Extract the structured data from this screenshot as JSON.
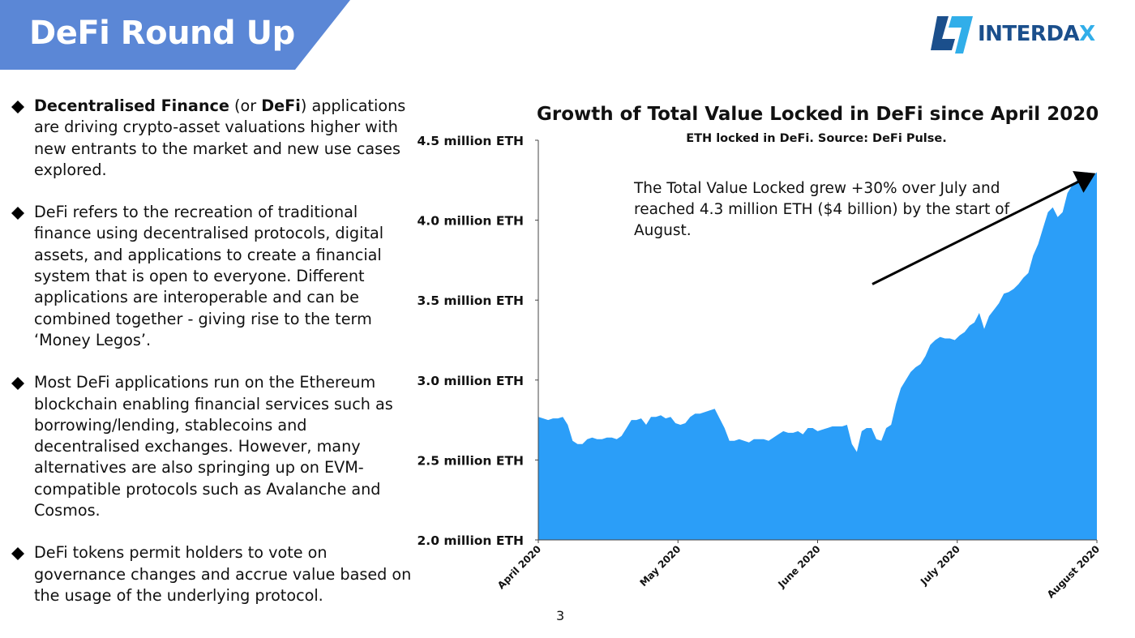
{
  "header": {
    "title": "DeFi Round Up",
    "band_color": "#5b87d6"
  },
  "logo": {
    "text_main": "INTERDA",
    "text_tail": "X",
    "colors": [
      "#1b4f8c",
      "#31aee9"
    ]
  },
  "bullets": [
    {
      "bold1": "Decentralised Finance",
      "mid": " (or ",
      "bold2": "DeFi",
      "rest": ") applications are driving crypto-asset valuations higher with new entrants to the market and new use cases explored."
    },
    {
      "text": "DeFi refers to the recreation of traditional finance using decentralised protocols, digital assets, and applications to create a financial system that is open to everyone. Different applications are interoperable and can be combined together - giving rise to the term ‘Money Legos’."
    },
    {
      "text": "Most DeFi applications run on the Ethereum blockchain enabling financial services such as borrowing/lending, stablecoins and decentralised exchanges. However, many alternatives are also springing up on EVM-compatible protocols such as Avalanche and Cosmos."
    },
    {
      "text": "DeFi tokens permit holders to vote on governance changes and accrue value based on the usage of the underlying protocol."
    }
  ],
  "chart_data": {
    "type": "area",
    "title": "Growth of Total Value Locked in DeFi since April 2020",
    "subtitle": "ETH locked in DeFi. Source: DeFi Pulse.",
    "y_ticks": [
      2.0,
      2.5,
      3.0,
      3.5,
      4.0,
      4.5
    ],
    "y_tick_labels": [
      "2.0 million ETH",
      "2.5 million ETH",
      "3.0 million ETH",
      "3.5 million ETH",
      "4.0 million ETH",
      "4.5 million ETH"
    ],
    "ylim": [
      2.0,
      4.5
    ],
    "x_ticks": [
      "April 2020",
      "May 2020",
      "June 2020",
      "July 2020",
      "August 2020"
    ],
    "fill_color": "#2b9ef8",
    "grid": false,
    "annotation": "The Total Value Locked grew +30% over July and reached 4.3 million ETH ($4 billion) by the start of August.",
    "trend_arrow": {
      "from": [
        2.9,
        3.6
      ],
      "to": [
        4.8,
        4.28
      ]
    },
    "series": [
      {
        "values": [
          2.77,
          2.76,
          2.75,
          2.76,
          2.76,
          2.77,
          2.72,
          2.62,
          2.6,
          2.6,
          2.63,
          2.64,
          2.63,
          2.63,
          2.64,
          2.64,
          2.63,
          2.65,
          2.7,
          2.75,
          2.75,
          2.76,
          2.72,
          2.77,
          2.77,
          2.78,
          2.76,
          2.77,
          2.73,
          2.72,
          2.73,
          2.77,
          2.79,
          2.79,
          2.8,
          2.81,
          2.82,
          2.76,
          2.7,
          2.62,
          2.62,
          2.63,
          2.62,
          2.61,
          2.63,
          2.63,
          2.63,
          2.62,
          2.64,
          2.66,
          2.68,
          2.67,
          2.67,
          2.68,
          2.66,
          2.7,
          2.7,
          2.68,
          2.69,
          2.7,
          2.71,
          2.71,
          2.71,
          2.72,
          2.6,
          2.55,
          2.68,
          2.7,
          2.7,
          2.63,
          2.62,
          2.7,
          2.72,
          2.85,
          2.95,
          3.0,
          3.05,
          3.08,
          3.1,
          3.15,
          3.22,
          3.25,
          3.27,
          3.26,
          3.26,
          3.25,
          3.28,
          3.3,
          3.34,
          3.36,
          3.42,
          3.32,
          3.4,
          3.44,
          3.48,
          3.54,
          3.55,
          3.57,
          3.6,
          3.64,
          3.67,
          3.78,
          3.85,
          3.95,
          4.05,
          4.08,
          4.02,
          4.05,
          4.17,
          4.22,
          4.25,
          4.28,
          4.3,
          4.27,
          4.3
        ]
      }
    ]
  },
  "footer": {
    "page_number": "3"
  }
}
